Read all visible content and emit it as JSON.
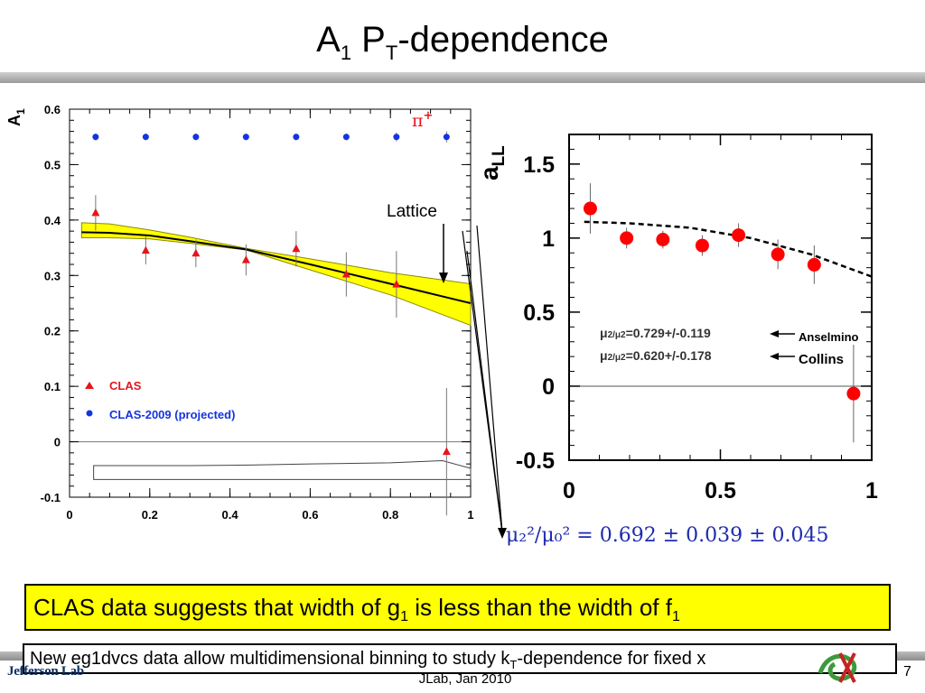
{
  "slide": {
    "title_main": "A",
    "title_sub1": "1",
    "title_mid": " P",
    "title_sub2": "T",
    "title_end": "-dependence",
    "box_yellow_a": "CLAS data suggests that width of g",
    "box_yellow_sub_a": "1",
    "box_yellow_b": " is less than the width of f",
    "box_yellow_sub_b": "1",
    "box_white_a": "New eg1dvcs data allow multidimensional binning to study k",
    "box_white_sub": "T",
    "box_white_b": "-dependence for fixed x",
    "footer": "JLab, Jan 2010",
    "page_number": "7",
    "logo": "Jefferson Lab",
    "formula": "μ₂²/μ₀² = 0.692 ± 0.039 ± 0.045"
  },
  "chart_data": [
    {
      "type": "scatter",
      "ylabel": "A",
      "ylabel_sub": "1",
      "xlim": [
        0,
        1
      ],
      "ylim": [
        -0.1,
        0.6
      ],
      "x_ticks": [
        "0",
        "0.2",
        "0.4",
        "0.6",
        "0.8",
        "1"
      ],
      "y_ticks": [
        "0.6",
        "0.5",
        "0.4",
        "0.3",
        "0.2",
        "0.1",
        "0",
        "-0.1"
      ],
      "particle_label": "π",
      "particle_charge": "+",
      "annotation": "Lattice",
      "series": [
        {
          "name": "CLAS",
          "marker": "triangle",
          "color": "#e8141c",
          "x": [
            0.065,
            0.19,
            0.315,
            0.44,
            0.565,
            0.69,
            0.815,
            0.94
          ],
          "y": [
            0.413,
            0.345,
            0.34,
            0.328,
            0.348,
            0.302,
            0.284,
            -0.018
          ],
          "err": [
            0.032,
            0.025,
            0.025,
            0.028,
            0.032,
            0.04,
            0.06,
            0.115
          ]
        },
        {
          "name": "CLAS-2009 (projected)",
          "marker": "circle",
          "color": "#1533e0",
          "x": [
            0.065,
            0.19,
            0.315,
            0.44,
            0.565,
            0.69,
            0.815,
            0.94
          ],
          "y": [
            0.55,
            0.55,
            0.55,
            0.55,
            0.55,
            0.55,
            0.55,
            0.55
          ],
          "err": [
            0.006,
            0.006,
            0.006,
            0.006,
            0.006,
            0.006,
            0.008,
            0.01
          ]
        }
      ],
      "fit_band": {
        "x": [
          0.03,
          0.1,
          0.2,
          0.3,
          0.44,
          0.6,
          0.8,
          1.0
        ],
        "center": [
          0.378,
          0.377,
          0.372,
          0.362,
          0.347,
          0.32,
          0.285,
          0.25
        ],
        "lower": [
          0.368,
          0.368,
          0.366,
          0.358,
          0.346,
          0.31,
          0.265,
          0.21
        ],
        "upper": [
          0.395,
          0.393,
          0.382,
          0.369,
          0.349,
          0.33,
          0.305,
          0.285
        ]
      },
      "systematics_band": {
        "x": [
          0.06,
          0.3,
          0.45,
          0.6,
          0.8,
          0.93,
          1.0
        ],
        "upper": [
          -0.043,
          -0.043,
          -0.042,
          -0.04,
          -0.038,
          -0.034,
          -0.048
        ],
        "lower": [
          -0.068,
          -0.068,
          -0.068,
          -0.068,
          -0.068,
          -0.068,
          -0.068
        ]
      }
    },
    {
      "type": "scatter",
      "ylabel": "a",
      "ylabel_sub": "LL",
      "xlim": [
        0,
        1
      ],
      "ylim": [
        -0.5,
        1.7
      ],
      "x_ticks": [
        "0",
        "0.5",
        "1"
      ],
      "y_ticks": [
        "1.5",
        "1",
        "0.5",
        "0",
        "-0.5"
      ],
      "series": [
        {
          "name": "",
          "marker": "circle",
          "color": "#ff0000",
          "x": [
            0.07,
            0.19,
            0.31,
            0.44,
            0.56,
            0.69,
            0.81,
            0.94
          ],
          "y": [
            1.2,
            1.0,
            0.99,
            0.95,
            1.02,
            0.89,
            0.82,
            -0.05
          ],
          "err": [
            0.17,
            0.07,
            0.06,
            0.07,
            0.08,
            0.1,
            0.13,
            0.33
          ]
        }
      ],
      "curve": {
        "x": [
          0.05,
          0.2,
          0.4,
          0.6,
          0.8,
          1.0
        ],
        "y": [
          1.11,
          1.1,
          1.07,
          1.0,
          0.89,
          0.74
        ]
      },
      "legend": [
        {
          "label_a": "μ",
          "label_b": "2/μ",
          "label_c": "2",
          "value": "=0.729+/-0.119",
          "model": "Anselmino"
        },
        {
          "label_a": "μ",
          "label_b": "2/μ",
          "label_c": "2",
          "value": "=0.620+/-0.178",
          "model": "Collins"
        }
      ]
    }
  ]
}
